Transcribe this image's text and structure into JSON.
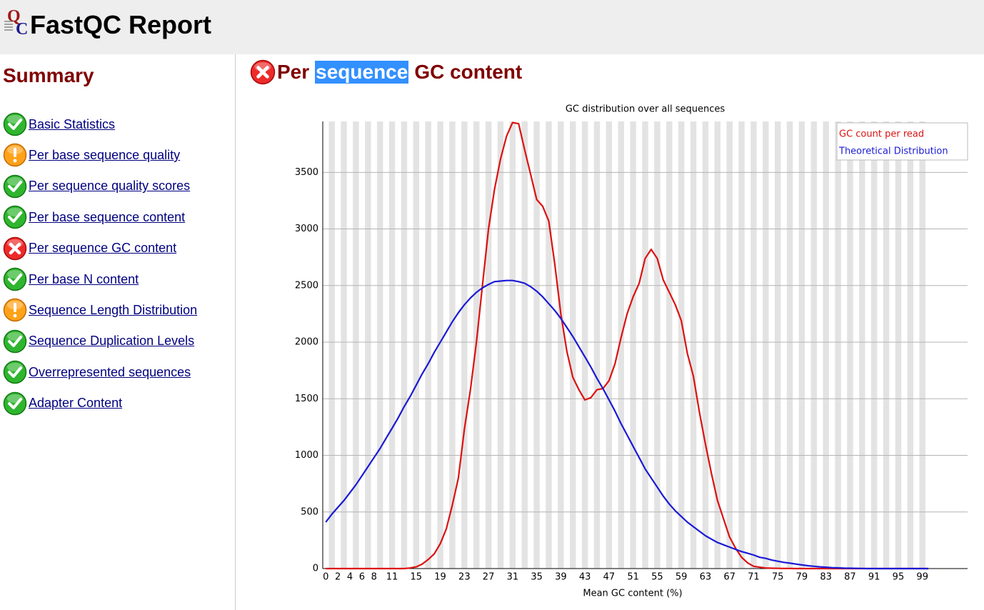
{
  "header": {
    "title": "FastQC Report"
  },
  "summary": {
    "title": "Summary",
    "items": [
      {
        "label": "Basic Statistics",
        "status": "pass"
      },
      {
        "label": "Per base sequence quality",
        "status": "warn"
      },
      {
        "label": "Per sequence quality scores",
        "status": "pass"
      },
      {
        "label": "Per base sequence content",
        "status": "pass"
      },
      {
        "label": "Per sequence GC content",
        "status": "fail"
      },
      {
        "label": "Per base N content",
        "status": "pass"
      },
      {
        "label": "Sequence Length Distribution",
        "status": "warn"
      },
      {
        "label": "Sequence Duplication Levels",
        "status": "pass"
      },
      {
        "label": "Overrepresented sequences",
        "status": "pass"
      },
      {
        "label": "Adapter Content",
        "status": "pass"
      }
    ]
  },
  "section": {
    "status": "fail",
    "title_parts": [
      "Per",
      "sequence",
      "GC content"
    ],
    "highlighted": 1
  },
  "chart_data": {
    "type": "line",
    "title": "GC distribution over all sequences",
    "x_label": "Mean GC content (%)",
    "x": [
      0,
      1,
      2,
      3,
      4,
      5,
      6,
      7,
      8,
      9,
      10,
      11,
      12,
      13,
      14,
      15,
      16,
      17,
      18,
      19,
      20,
      21,
      22,
      23,
      24,
      25,
      26,
      27,
      28,
      29,
      30,
      31,
      32,
      33,
      34,
      35,
      36,
      37,
      38,
      39,
      40,
      41,
      42,
      43,
      44,
      45,
      46,
      47,
      48,
      49,
      50,
      51,
      52,
      53,
      54,
      55,
      56,
      57,
      58,
      59,
      60,
      61,
      62,
      63,
      64,
      65,
      66,
      67,
      68,
      69,
      70,
      71,
      72,
      73,
      74,
      75,
      76,
      77,
      78,
      79,
      80,
      81,
      82,
      83,
      84,
      85,
      86,
      87,
      88,
      89,
      90,
      91,
      92,
      93,
      94,
      95,
      96,
      97,
      98,
      99,
      100
    ],
    "series": [
      {
        "name": "GC count per read",
        "color": "#dd1111",
        "values": [
          0,
          0,
          0,
          0,
          0,
          0,
          0,
          0,
          0,
          0,
          0,
          0,
          0,
          0,
          5,
          15,
          40,
          80,
          130,
          220,
          350,
          560,
          800,
          1230,
          1580,
          2000,
          2500,
          3000,
          3350,
          3620,
          3820,
          3940,
          3930,
          3700,
          3480,
          3260,
          3200,
          3070,
          2690,
          2250,
          1920,
          1690,
          1580,
          1490,
          1510,
          1580,
          1590,
          1660,
          1810,
          2040,
          2250,
          2400,
          2520,
          2740,
          2820,
          2740,
          2550,
          2440,
          2330,
          2190,
          1900,
          1700,
          1380,
          1100,
          840,
          600,
          440,
          280,
          180,
          100,
          50,
          20,
          12,
          5,
          3,
          2,
          1,
          1,
          0,
          0,
          0,
          0,
          0,
          0,
          0,
          0,
          0,
          0,
          0,
          0,
          0,
          0,
          0,
          0,
          0,
          0,
          0,
          0,
          0,
          0,
          0
        ]
      },
      {
        "name": "Theoretical Distribution",
        "color": "#1a1ad6",
        "values": [
          410,
          480,
          540,
          600,
          670,
          740,
          820,
          900,
          980,
          1060,
          1150,
          1240,
          1330,
          1430,
          1520,
          1620,
          1720,
          1810,
          1910,
          2000,
          2090,
          2180,
          2260,
          2330,
          2390,
          2440,
          2480,
          2510,
          2535,
          2540,
          2545,
          2545,
          2535,
          2520,
          2490,
          2450,
          2400,
          2340,
          2280,
          2210,
          2130,
          2050,
          1960,
          1870,
          1780,
          1680,
          1590,
          1490,
          1390,
          1280,
          1180,
          1080,
          980,
          880,
          800,
          720,
          640,
          570,
          510,
          460,
          410,
          370,
          330,
          290,
          260,
          230,
          210,
          190,
          170,
          150,
          135,
          120,
          100,
          90,
          75,
          65,
          55,
          48,
          40,
          32,
          25,
          20,
          15,
          12,
          8,
          6,
          4,
          3,
          2,
          1,
          0,
          0,
          0,
          0,
          0,
          0,
          0,
          0,
          0,
          0,
          0
        ]
      }
    ],
    "xlim": [
      -0.5,
      106.5
    ],
    "xticks": [
      0,
      2,
      4,
      6,
      8,
      11,
      15,
      19,
      23,
      27,
      31,
      35,
      39,
      43,
      47,
      51,
      55,
      59,
      63,
      67,
      71,
      75,
      79,
      83,
      87,
      91,
      95,
      99
    ],
    "ylim": [
      0,
      3950
    ],
    "yticks": [
      0,
      500,
      1000,
      1500,
      2000,
      2500,
      3000,
      3500
    ],
    "grid": true,
    "legend": "upper right"
  }
}
